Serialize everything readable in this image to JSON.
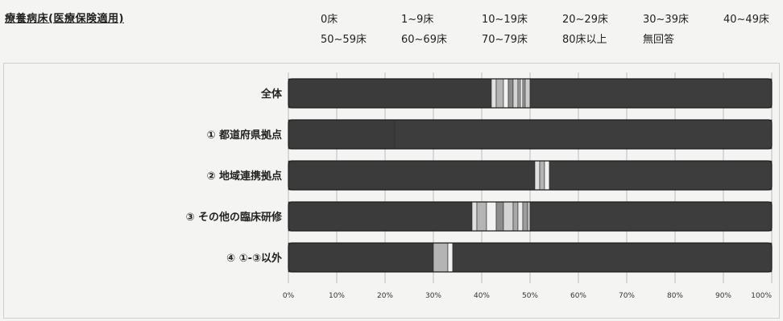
{
  "chart_data": {
    "type": "bar",
    "orientation": "horizontal",
    "stacked": "percent",
    "title": "療養病床(医療保険適用)",
    "legend_placement": "top",
    "legend": [
      "0床",
      "1~9床",
      "10~19床",
      "20~29床",
      "30~39床",
      "40~49床",
      "50~59床",
      "60~69床",
      "70~79床",
      "80床以上",
      "無回答"
    ],
    "categories": [
      "全体",
      "① 都道府県拠点",
      "② 地域連携拠点",
      "③ その他の臨床研修",
      "④ ①-③以外"
    ],
    "xlim": [
      0,
      100
    ],
    "xticks": [
      "0%",
      "10%",
      "20%",
      "30%",
      "40%",
      "50%",
      "60%",
      "70%",
      "80%",
      "90%",
      "100%"
    ],
    "grid": true,
    "series": [
      {
        "name": "0床",
        "values": [
          42,
          22,
          51,
          38,
          30
        ]
      },
      {
        "name": "1~9床",
        "values": [
          1,
          0,
          1,
          1,
          0
        ]
      },
      {
        "name": "10~19床",
        "values": [
          1.5,
          0,
          1,
          2,
          3
        ]
      },
      {
        "name": "20~29床",
        "values": [
          1,
          0,
          1,
          2,
          1
        ]
      },
      {
        "name": "30~39床",
        "values": [
          1,
          0,
          0,
          1.5,
          0
        ]
      },
      {
        "name": "40~49床",
        "values": [
          1,
          0,
          0,
          2,
          0
        ]
      },
      {
        "name": "50~59床",
        "values": [
          0.5,
          0,
          0,
          1,
          0
        ]
      },
      {
        "name": "60~69床",
        "values": [
          0.5,
          0,
          0,
          1,
          0
        ]
      },
      {
        "name": "70~79床",
        "values": [
          0.5,
          0,
          0,
          1,
          0
        ]
      },
      {
        "name": "80床以上",
        "values": [
          1,
          0,
          0,
          0.5,
          0
        ]
      },
      {
        "name": "無回答",
        "values": [
          50,
          78,
          46,
          50,
          66
        ]
      }
    ],
    "colors": [
      "#3b3b3b",
      "#e0e0e0",
      "#b4b4b4",
      "#f2f2f2",
      "#8c8c8c",
      "#d4d4d4",
      "#a8a8a8",
      "#ececec",
      "#9c9c9c",
      "#cccccc",
      "#3d3d3d"
    ]
  }
}
